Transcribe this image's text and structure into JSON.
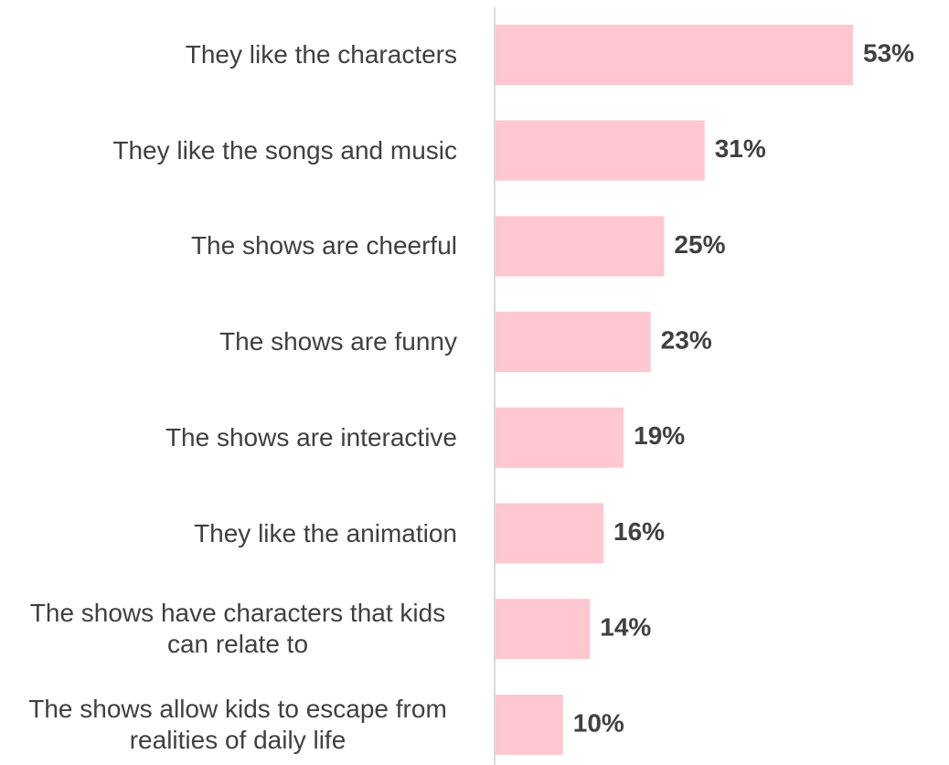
{
  "chart_data": {
    "type": "barh",
    "categories": [
      "They like the characters",
      "They like the songs and music",
      "The shows are cheerful",
      "The shows are funny",
      "The shows are interactive",
      "They like the animation",
      "The shows have characters that kids can relate to",
      "The shows allow kids to escape from realities of daily life"
    ],
    "values": [
      53,
      31,
      25,
      23,
      19,
      16,
      14,
      10
    ],
    "value_labels": [
      "53%",
      "31%",
      "25%",
      "23%",
      "19%",
      "16%",
      "14%",
      "10%"
    ],
    "color": "#ffc7d0"
  }
}
